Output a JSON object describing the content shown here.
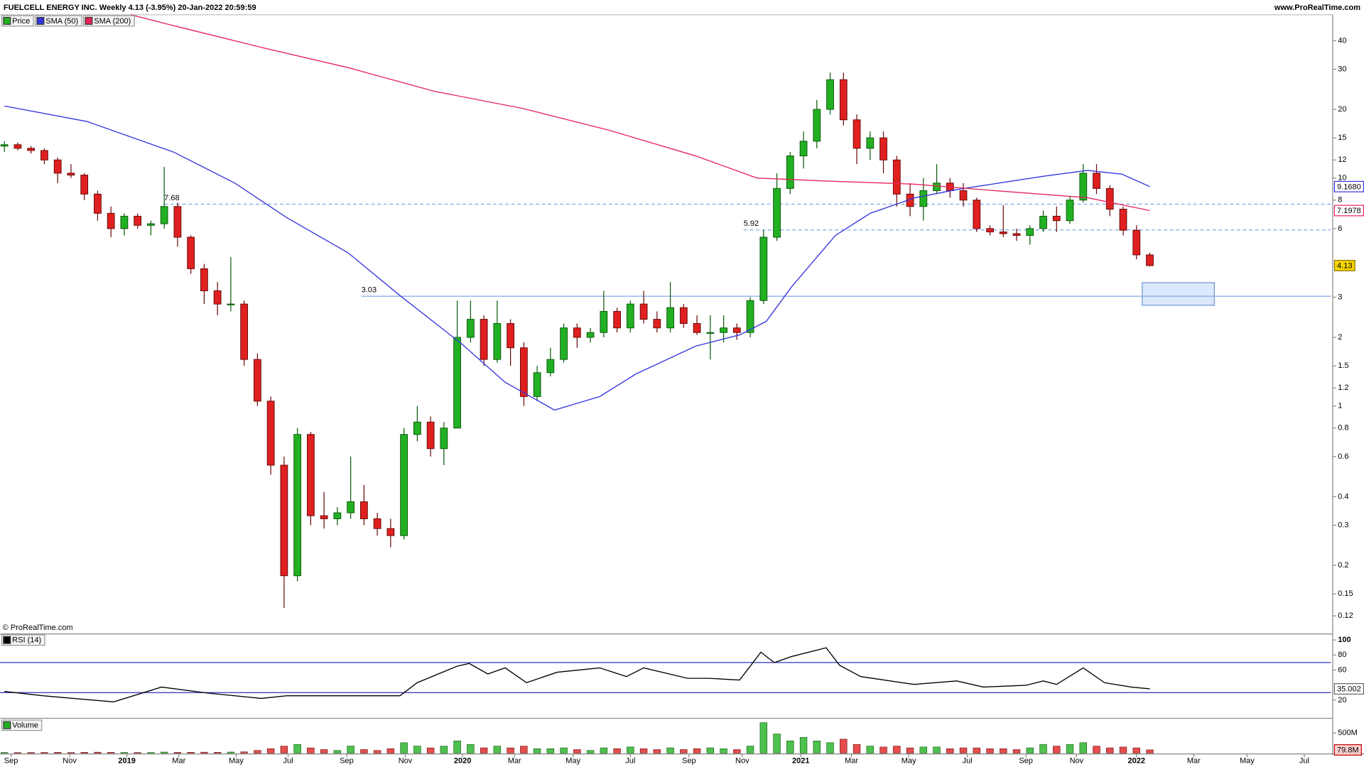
{
  "header": {
    "title": "FUELCELL ENERGY INC. Weekly 4.13 (-3.95%) 20-Jan-2022 20:59:59",
    "site": "www.ProRealTime.com"
  },
  "footer": "© ProRealTime.com",
  "chart_data": [
    {
      "type": "candlestick",
      "log_scale": true,
      "grid": false,
      "xlim": [
        -0.33,
        99.6
      ],
      "xticks": [
        {
          "value": 0.5,
          "label": "Sep"
        },
        {
          "value": 4.9,
          "label": "Nov"
        },
        {
          "value": 9.2,
          "label": "2019"
        },
        {
          "value": 13.1,
          "label": "Mar"
        },
        {
          "value": 17.4,
          "label": "May"
        },
        {
          "value": 21.3,
          "label": "Jul"
        },
        {
          "value": 25.7,
          "label": "Sep"
        },
        {
          "value": 30.1,
          "label": "Nov"
        },
        {
          "value": 34.4,
          "label": "2020"
        },
        {
          "value": 38.3,
          "label": "Mar"
        },
        {
          "value": 42.7,
          "label": "May"
        },
        {
          "value": 47.0,
          "label": "Jul"
        },
        {
          "value": 51.4,
          "label": "Sep"
        },
        {
          "value": 55.4,
          "label": "Nov"
        },
        {
          "value": 59.8,
          "label": "2021"
        },
        {
          "value": 63.6,
          "label": "Mar"
        },
        {
          "value": 67.9,
          "label": "May"
        },
        {
          "value": 72.3,
          "label": "Jul"
        },
        {
          "value": 76.7,
          "label": "Sep"
        },
        {
          "value": 80.5,
          "label": "Nov"
        },
        {
          "value": 85.0,
          "label": "2022"
        },
        {
          "value": 89.3,
          "label": "Mar"
        },
        {
          "value": 93.3,
          "label": "May"
        },
        {
          "value": 97.6,
          "label": "Jul"
        }
      ],
      "ylim": [
        0.1,
        52
      ],
      "yticks": [
        40,
        30,
        20,
        15,
        12,
        10,
        8,
        6,
        3,
        2,
        1.5,
        1.2,
        1,
        0.8,
        0.6,
        0.4,
        0.3,
        0.2,
        0.15,
        0.12
      ],
      "candles": {
        "name": "Price",
        "up_color": "#22b022",
        "down_color": "#e02020",
        "last_label": "4.13",
        "open": [
          13.8,
          14,
          13.5,
          13.2,
          12,
          10.5,
          10.3,
          8.5,
          7,
          6,
          6.8,
          6.2,
          6.3,
          7.5,
          5.5,
          4,
          3.2,
          2.8,
          2.8,
          1.6,
          1.05,
          0.55,
          0.18,
          0.75,
          0.33,
          0.32,
          0.34,
          0.38,
          0.32,
          0.29,
          0.27,
          0.75,
          0.85,
          0.65,
          0.8,
          2.0,
          2.4,
          1.6,
          2.3,
          1.8,
          1.1,
          1.4,
          1.6,
          2.2,
          2.0,
          2.1,
          2.6,
          2.2,
          2.8,
          2.4,
          2.2,
          2.7,
          2.3,
          2.1,
          2.1,
          2.2,
          2.1,
          2.9,
          5.5,
          9.0,
          12.5,
          14.5,
          20,
          27,
          18,
          13.5,
          15,
          12,
          8.5,
          7.5,
          8.8,
          9.5,
          8.8,
          8,
          6,
          5.8,
          5.7,
          5.6,
          6,
          6.8,
          6.5,
          8,
          10.5,
          9.0,
          7.3,
          5.9,
          4.6
        ],
        "high": [
          14.5,
          14.3,
          13.8,
          13.5,
          12.3,
          11.5,
          10.5,
          8.8,
          7.5,
          7,
          7,
          6.5,
          11.2,
          7.8,
          5.6,
          4.2,
          3.5,
          4.5,
          2.9,
          1.7,
          1.1,
          0.6,
          0.8,
          0.77,
          0.42,
          0.36,
          0.6,
          0.45,
          0.34,
          0.32,
          0.8,
          1.0,
          0.9,
          0.85,
          2.9,
          2.9,
          2.5,
          2.9,
          2.4,
          1.9,
          1.5,
          1.8,
          2.3,
          2.3,
          2.2,
          3.2,
          2.7,
          2.9,
          3.2,
          2.6,
          3.5,
          2.8,
          2.5,
          2.5,
          2.5,
          2.3,
          3.0,
          5.9,
          10.5,
          13,
          16,
          22,
          29,
          29,
          19,
          16,
          16,
          12.5,
          9.5,
          10,
          11.5,
          10,
          9.5,
          8.2,
          6.2,
          7.6,
          6,
          6.2,
          7.2,
          7.5,
          8.3,
          11.5,
          11.5,
          9.3,
          7.5,
          6.2,
          4.7
        ],
        "low": [
          13,
          13.2,
          12.8,
          11.5,
          9.5,
          10,
          8,
          6.5,
          5.5,
          5.6,
          6,
          5.6,
          6,
          5,
          3.8,
          2.8,
          2.5,
          2.6,
          1.5,
          1.0,
          0.5,
          0.13,
          0.17,
          0.3,
          0.29,
          0.3,
          0.32,
          0.3,
          0.27,
          0.24,
          0.26,
          0.7,
          0.6,
          0.55,
          0.8,
          1.9,
          1.5,
          1.55,
          1.5,
          1.0,
          1.05,
          1.35,
          1.55,
          1.8,
          1.9,
          2.0,
          2.1,
          2.1,
          2.3,
          2.1,
          2.1,
          2.2,
          2.05,
          1.6,
          1.9,
          1.95,
          2.0,
          2.8,
          5.3,
          8.5,
          11,
          13.5,
          19,
          17,
          11.5,
          12,
          10.5,
          7.5,
          6.8,
          6.5,
          8.5,
          8.2,
          7.5,
          5.8,
          5.6,
          5.5,
          5.3,
          5.1,
          5.8,
          5.8,
          6.3,
          7.8,
          8.5,
          6.8,
          5.6,
          4.4,
          4.1
        ],
        "close": [
          14,
          13.5,
          13.2,
          12,
          10.5,
          10.3,
          8.5,
          7,
          6,
          6.8,
          6.2,
          6.3,
          7.5,
          5.5,
          4,
          3.2,
          2.8,
          2.8,
          1.6,
          1.05,
          0.55,
          0.18,
          0.75,
          0.33,
          0.32,
          0.34,
          0.38,
          0.32,
          0.29,
          0.27,
          0.75,
          0.85,
          0.65,
          0.8,
          2.0,
          2.4,
          1.6,
          2.3,
          1.8,
          1.1,
          1.4,
          1.6,
          2.2,
          2.0,
          2.1,
          2.6,
          2.2,
          2.8,
          2.4,
          2.2,
          2.7,
          2.3,
          2.1,
          2.1,
          2.2,
          2.1,
          2.9,
          5.5,
          9.0,
          12.5,
          14.5,
          20,
          27,
          18,
          13.5,
          15,
          12,
          8.5,
          7.5,
          8.8,
          9.5,
          8.8,
          8,
          6,
          5.8,
          5.7,
          5.6,
          6,
          6.8,
          6.5,
          8,
          10.5,
          9.0,
          7.3,
          5.9,
          4.6,
          4.13
        ]
      },
      "series": [
        {
          "name": "SMA (50)",
          "color": "#3535e0",
          "last_label": "9.1680",
          "x": [
            0,
            6.2,
            12.7,
            17.3,
            21.2,
            25.8,
            29.7,
            34.3,
            37.6,
            41.3,
            44.7,
            47.4,
            51.9,
            55.2,
            57.2,
            59.1,
            62.4,
            65,
            68.3,
            71.5,
            78.1,
            81.3,
            83.9,
            86
          ],
          "values": [
            20.7,
            17.7,
            13,
            9.5,
            6.7,
            4.7,
            3.05,
            1.88,
            1.27,
            0.96,
            1.1,
            1.38,
            1.83,
            2.05,
            2.35,
            3.33,
            5.6,
            7.0,
            8.17,
            8.9,
            10.2,
            10.8,
            10.4,
            9.168
          ]
        },
        {
          "name": "SMA (200)",
          "color": "#e8245a",
          "last_label": "7.1978",
          "x": [
            9.5,
            12.7,
            19.3,
            25.8,
            32.3,
            38.9,
            45.4,
            51.9,
            56.5,
            61.7,
            68.3,
            74.8,
            81.3,
            86
          ],
          "values": [
            52,
            46.6,
            37.4,
            30.5,
            24,
            20.2,
            16.2,
            12.5,
            10,
            9.7,
            9.4,
            8.76,
            8.2,
            7.1978
          ]
        }
      ],
      "levels": [
        {
          "value": 7.68,
          "x": 12,
          "style": "dashed",
          "color": "#7fa7e6",
          "labeled": true
        },
        {
          "value": 5.92,
          "x": 55.5,
          "style": "dashed",
          "color": "#7fa7e6",
          "labeled": true
        },
        {
          "value": 3.03,
          "x": 26.8,
          "style": "solid",
          "color": "#7fa7e6",
          "labeled": true
        }
      ]
    },
    {
      "type": "line",
      "ylim": [
        -3,
        108
      ],
      "yticks": [
        100,
        80,
        60,
        20
      ],
      "levels": [
        {
          "value": 70,
          "style": "solid",
          "color": "#3030c0"
        },
        {
          "value": 30,
          "style": "solid",
          "color": "#3030c0"
        }
      ],
      "series": [
        {
          "name": "RSI (14)",
          "color": "#000000",
          "last_label": "35.002",
          "x": [
            0,
            2.9,
            8.2,
            11.8,
            15.3,
            19.3,
            21.2,
            29.7,
            31,
            34,
            34.9,
            36.3,
            37.6,
            39.2,
            41.5,
            44.7,
            46.7,
            48,
            51.3,
            52.9,
            55.2,
            56.8,
            57.8,
            59.1,
            61.7,
            62.7,
            64.3,
            68.3,
            71.5,
            73.5,
            76.7,
            78,
            79,
            81,
            82.6,
            84.6,
            86
          ],
          "values": [
            31.6,
            25.8,
            17.7,
            37.4,
            29.3,
            22.3,
            25.8,
            25.8,
            43.2,
            65.2,
            68.7,
            54.8,
            62.9,
            43.2,
            57.1,
            62.9,
            51.3,
            62.9,
            49,
            49,
            46.7,
            83.8,
            69.9,
            78,
            89.6,
            66.4,
            51.3,
            40.9,
            45.5,
            37.4,
            39.7,
            45.5,
            40.9,
            62.9,
            43.2,
            37.4,
            35.002
          ]
        }
      ]
    },
    {
      "type": "bar",
      "name": "Volume",
      "ylim": [
        0,
        826000000.0
      ],
      "yticks": [
        {
          "value": 500000000.0,
          "label": "500M"
        }
      ],
      "last_label": "79.8M",
      "values": [
        15000000.0,
        12000000.0,
        14000000.0,
        16000000.0,
        18000000.0,
        14000000.0,
        20000000.0,
        22000000.0,
        18000000.0,
        16000000.0,
        14000000.0,
        15000000.0,
        25000000.0,
        18000000.0,
        20000000.0,
        22000000.0,
        20000000.0,
        25000000.0,
        30000000.0,
        65000000.0,
        109000000.0,
        174000000.0,
        217000000.0,
        130000000.0,
        87000000.0,
        65000000.0,
        174000000.0,
        87000000.0,
        65000000.0,
        109000000.0,
        260000000.0,
        174000000.0,
        130000000.0,
        174000000.0,
        304000000.0,
        217000000.0,
        130000000.0,
        174000000.0,
        130000000.0,
        174000000.0,
        109000000.0,
        109000000.0,
        130000000.0,
        87000000.0,
        65000000.0,
        130000000.0,
        109000000.0,
        152000000.0,
        109000000.0,
        87000000.0,
        130000000.0,
        87000000.0,
        109000000.0,
        130000000.0,
        109000000.0,
        87000000.0,
        174000000.0,
        760000000.0,
        478000000.0,
        304000000.0,
        391000000.0,
        304000000.0,
        260000000.0,
        348000000.0,
        217000000.0,
        174000000.0,
        152000000.0,
        174000000.0,
        130000000.0,
        152000000.0,
        152000000.0,
        109000000.0,
        130000000.0,
        130000000.0,
        109000000.0,
        109000000.0,
        87000000.0,
        130000000.0,
        217000000.0,
        174000000.0,
        217000000.0,
        260000000.0,
        174000000.0,
        130000000.0,
        152000000.0,
        130000000.0,
        79800000.0
      ]
    }
  ]
}
